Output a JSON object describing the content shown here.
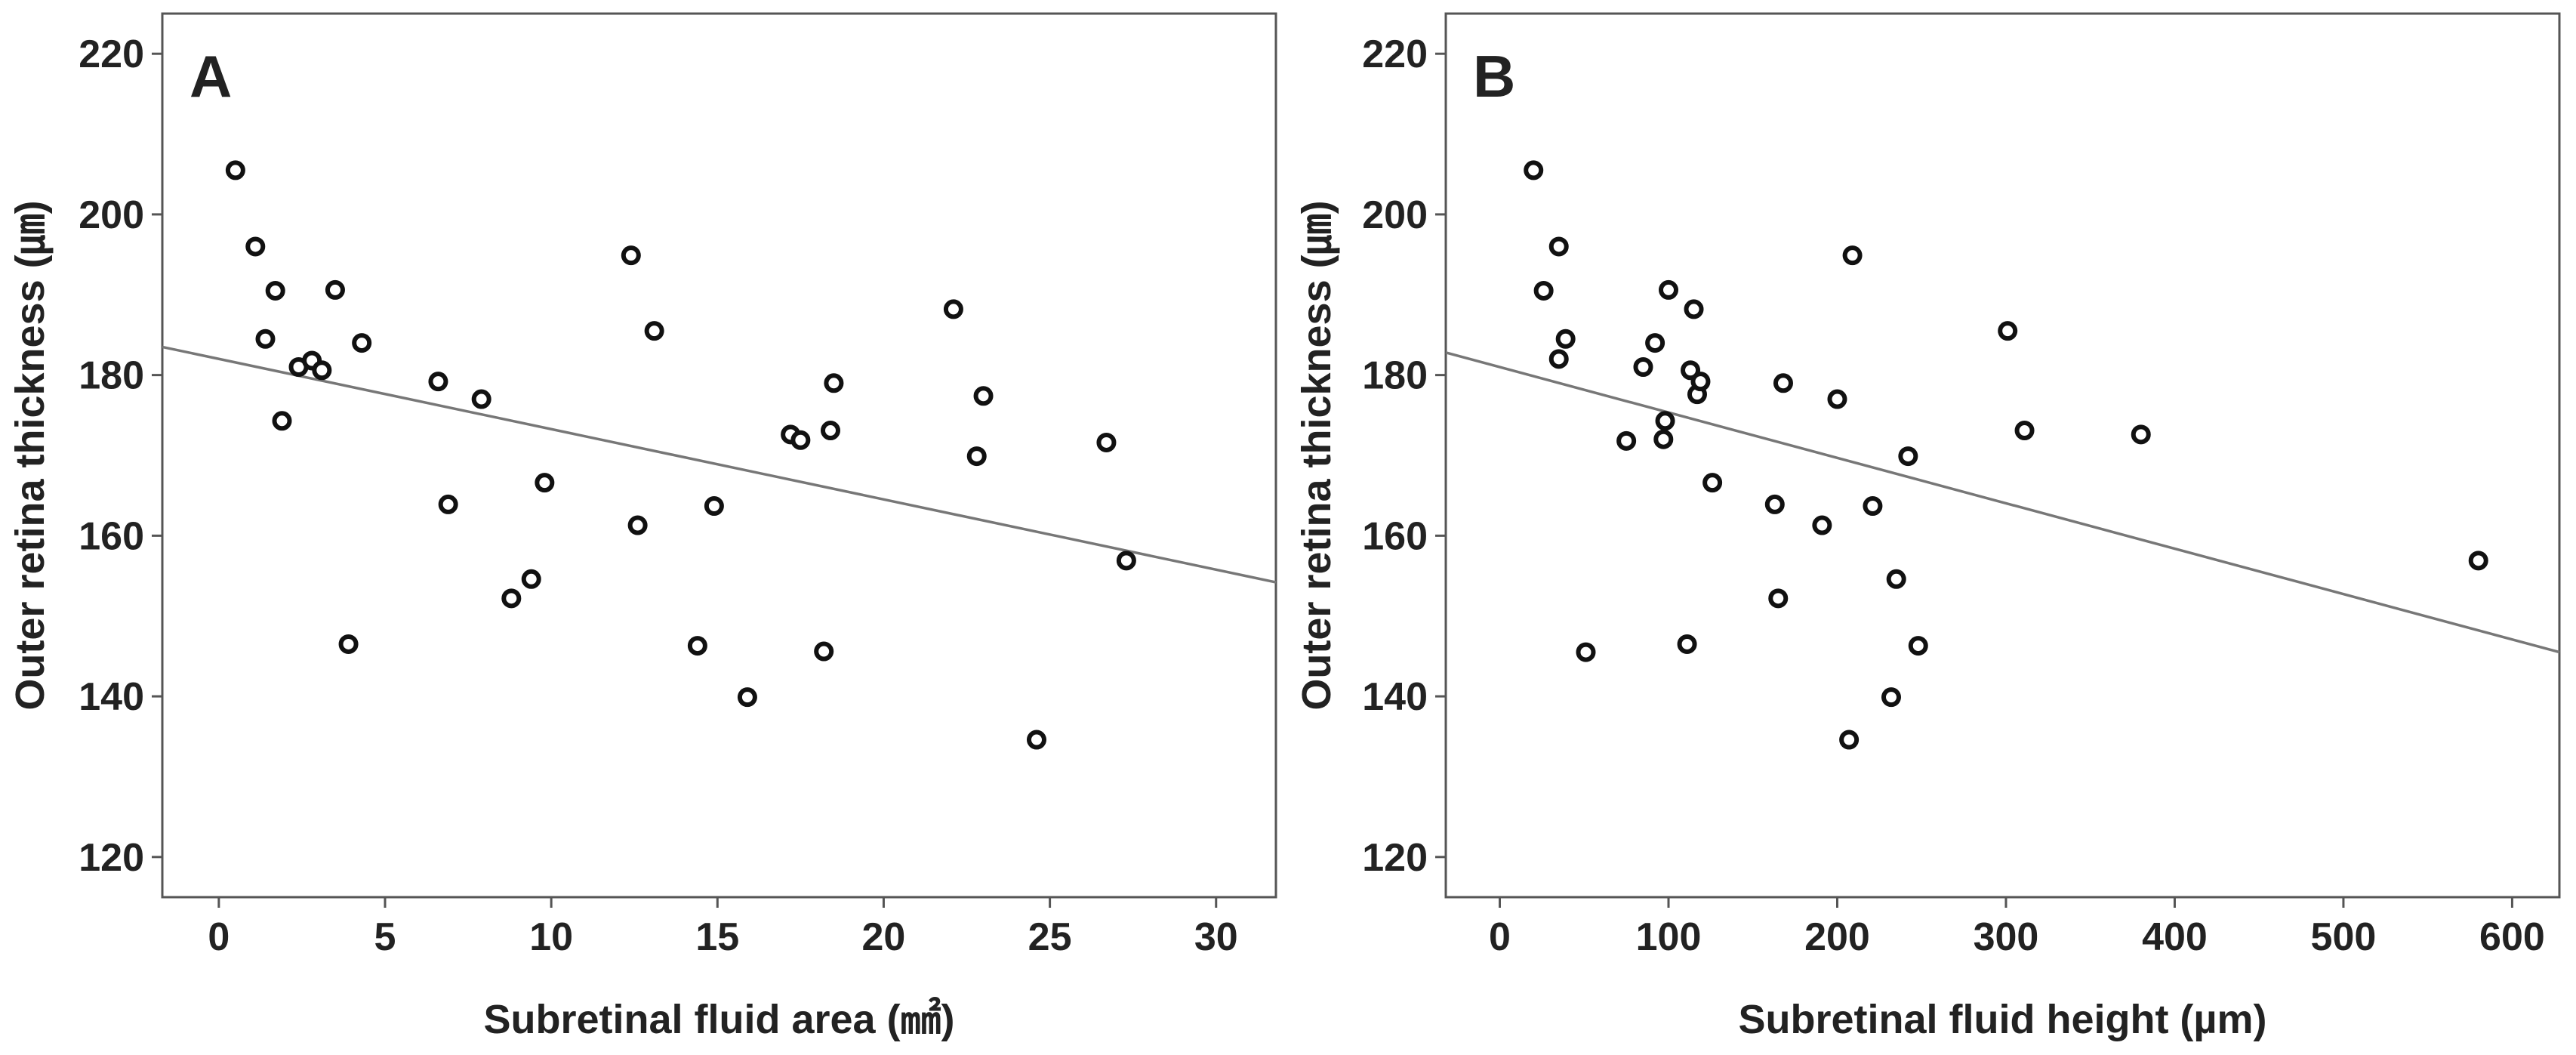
{
  "chart_data": [
    {
      "type": "scatter",
      "panel_label": "A",
      "title": "",
      "xlabel": "Subretinal fluid area (㎟)",
      "ylabel": "Outer retina thickness (㎛)",
      "xlim": [
        -1.7,
        31.8
      ],
      "ylim": [
        115,
        225
      ],
      "xticks": [
        0,
        5,
        10,
        15,
        20,
        25,
        30
      ],
      "yticks": [
        120,
        140,
        160,
        180,
        200,
        220
      ],
      "xtick_labels": [
        "0",
        "5",
        "10",
        "15",
        "20",
        "25",
        "30"
      ],
      "ytick_labels": [
        "120",
        "140",
        "160",
        "180",
        "200",
        "220"
      ],
      "grid": false,
      "fit_line": {
        "x": [
          -1.7,
          31.8
        ],
        "y": [
          183.5,
          154.2
        ]
      },
      "points": [
        {
          "x": 0.5,
          "y": 205.5
        },
        {
          "x": 1.1,
          "y": 196.0
        },
        {
          "x": 1.4,
          "y": 184.5
        },
        {
          "x": 1.7,
          "y": 190.5
        },
        {
          "x": 1.9,
          "y": 174.3
        },
        {
          "x": 2.4,
          "y": 181.0
        },
        {
          "x": 2.8,
          "y": 181.8
        },
        {
          "x": 3.1,
          "y": 180.6
        },
        {
          "x": 3.5,
          "y": 190.6
        },
        {
          "x": 3.9,
          "y": 146.5
        },
        {
          "x": 4.3,
          "y": 184.0
        },
        {
          "x": 6.6,
          "y": 179.2
        },
        {
          "x": 6.9,
          "y": 163.9
        },
        {
          "x": 7.9,
          "y": 177.0
        },
        {
          "x": 8.8,
          "y": 152.2
        },
        {
          "x": 9.4,
          "y": 154.6
        },
        {
          "x": 9.8,
          "y": 166.6
        },
        {
          "x": 12.4,
          "y": 194.9
        },
        {
          "x": 12.6,
          "y": 161.3
        },
        {
          "x": 13.1,
          "y": 185.5
        },
        {
          "x": 14.4,
          "y": 146.3
        },
        {
          "x": 14.9,
          "y": 163.7
        },
        {
          "x": 15.9,
          "y": 139.9
        },
        {
          "x": 17.2,
          "y": 172.6
        },
        {
          "x": 17.5,
          "y": 171.9
        },
        {
          "x": 18.2,
          "y": 145.6
        },
        {
          "x": 18.4,
          "y": 173.1
        },
        {
          "x": 18.5,
          "y": 179.0
        },
        {
          "x": 22.1,
          "y": 188.2
        },
        {
          "x": 22.8,
          "y": 169.9
        },
        {
          "x": 23.0,
          "y": 177.4
        },
        {
          "x": 24.6,
          "y": 134.6
        },
        {
          "x": 26.7,
          "y": 171.6
        },
        {
          "x": 27.3,
          "y": 156.9
        }
      ]
    },
    {
      "type": "scatter",
      "panel_label": "B",
      "title": "",
      "xlabel": "Subretinal fluid height (µm)",
      "ylabel": "Outer retina thickness (㎛)",
      "xlim": [
        -32,
        628
      ],
      "ylim": [
        115,
        225
      ],
      "xticks": [
        0,
        100,
        200,
        300,
        400,
        500,
        600
      ],
      "yticks": [
        120,
        140,
        160,
        180,
        200,
        220
      ],
      "xtick_labels": [
        "0",
        "100",
        "200",
        "300",
        "400",
        "500",
        "600"
      ],
      "ytick_labels": [
        "120",
        "140",
        "160",
        "180",
        "200",
        "220"
      ],
      "grid": false,
      "fit_line": {
        "x": [
          -32,
          628
        ],
        "y": [
          182.8,
          145.5
        ]
      },
      "points": [
        {
          "x": 20,
          "y": 205.5
        },
        {
          "x": 26,
          "y": 190.5
        },
        {
          "x": 35,
          "y": 196.0
        },
        {
          "x": 35,
          "y": 182.0
        },
        {
          "x": 39,
          "y": 184.5
        },
        {
          "x": 51,
          "y": 145.5
        },
        {
          "x": 75,
          "y": 171.8
        },
        {
          "x": 85,
          "y": 181.0
        },
        {
          "x": 92,
          "y": 184.0
        },
        {
          "x": 97,
          "y": 172.0
        },
        {
          "x": 98,
          "y": 174.3
        },
        {
          "x": 100,
          "y": 190.6
        },
        {
          "x": 111,
          "y": 146.5
        },
        {
          "x": 113,
          "y": 180.6
        },
        {
          "x": 115,
          "y": 188.2
        },
        {
          "x": 117,
          "y": 177.6
        },
        {
          "x": 119,
          "y": 179.2
        },
        {
          "x": 126,
          "y": 166.6
        },
        {
          "x": 163,
          "y": 163.9
        },
        {
          "x": 165,
          "y": 152.2
        },
        {
          "x": 168,
          "y": 179.0
        },
        {
          "x": 191,
          "y": 161.3
        },
        {
          "x": 200,
          "y": 177.0
        },
        {
          "x": 207,
          "y": 134.6
        },
        {
          "x": 209,
          "y": 194.9
        },
        {
          "x": 221,
          "y": 163.7
        },
        {
          "x": 232,
          "y": 139.9
        },
        {
          "x": 235,
          "y": 154.6
        },
        {
          "x": 242,
          "y": 169.9
        },
        {
          "x": 248,
          "y": 146.3
        },
        {
          "x": 301,
          "y": 185.5
        },
        {
          "x": 311,
          "y": 173.1
        },
        {
          "x": 380,
          "y": 172.6
        },
        {
          "x": 580,
          "y": 156.9
        }
      ]
    }
  ]
}
